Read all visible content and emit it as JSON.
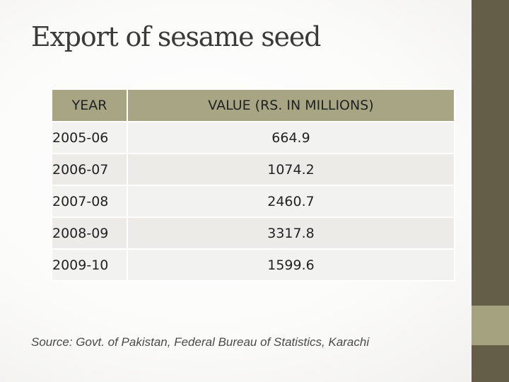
{
  "slide": {
    "title": "Export of sesame seed",
    "source": "Source: Govt. of  Pakistan, Federal Bureau of Statistics, Karachi",
    "colors": {
      "header_fill": "#a8a585",
      "side_bar_dark": "#645d48",
      "side_bar_light": "#a5a37f",
      "row_fill": "#f2f2f0"
    }
  },
  "table": {
    "headers": [
      "YEAR",
      "VALUE (RS. IN MILLIONS)"
    ],
    "rows": [
      {
        "year": "2005-06",
        "value": "664.9"
      },
      {
        "year": "2006-07",
        "value": "1074.2"
      },
      {
        "year": "2007-08",
        "value": "2460.7"
      },
      {
        "year": "2008-09",
        "value": "3317.8"
      },
      {
        "year": "2009-10",
        "value": "1599.6"
      }
    ]
  }
}
